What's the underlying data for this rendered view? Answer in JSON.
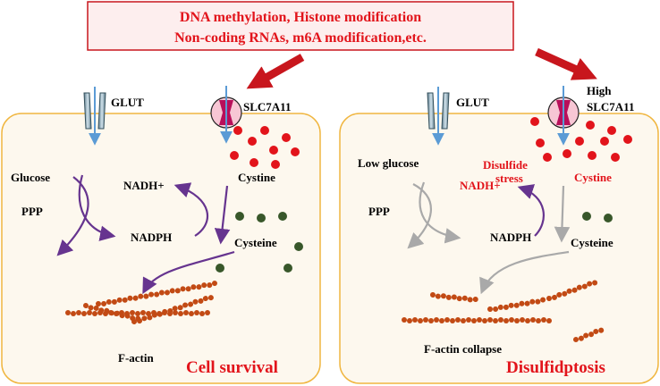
{
  "header": {
    "line1": "DNA methylation, Histone modification",
    "line2": "Non-coding RNAs, m6A modification,etc."
  },
  "left_cell": {
    "glut_label": "GLUT",
    "transporter_label": "SLC7A11",
    "glucose_label": "Glucose",
    "ppp_label": "PPP",
    "nadh_label": "NADH+",
    "nadph_label": "NADPH",
    "cystine_label": "Cystine",
    "cysteine_label": "Cysteine",
    "factin_label": "F-actin",
    "outcome_label": "Cell survival"
  },
  "right_cell": {
    "glut_label": "GLUT",
    "transporter_label_line1": "High",
    "transporter_label_line2": "SLC7A11",
    "glucose_label": "Low glucose",
    "ppp_label": "PPP",
    "nadh_label": "NADH+",
    "nadph_label": "NADPH",
    "stress_line1": "Disulfide",
    "stress_line2": "stress",
    "cystine_label": "Cystine",
    "cysteine_label": "Cysteine",
    "factin_label": "F-actin collapse",
    "outcome_label": "Disulfidptosis"
  },
  "colors": {
    "cell_border": "#f0b640",
    "cell_fill": "#fdf8ee",
    "accent_red": "#e2141b",
    "header_fill": "#fdeeee",
    "purple_arrow": "#66348f",
    "gray_arrow": "#a9a9a9",
    "blue_arrow": "#5b9bd5",
    "cysteine_green": "#38572a",
    "factin_brown": "#c24a14"
  }
}
